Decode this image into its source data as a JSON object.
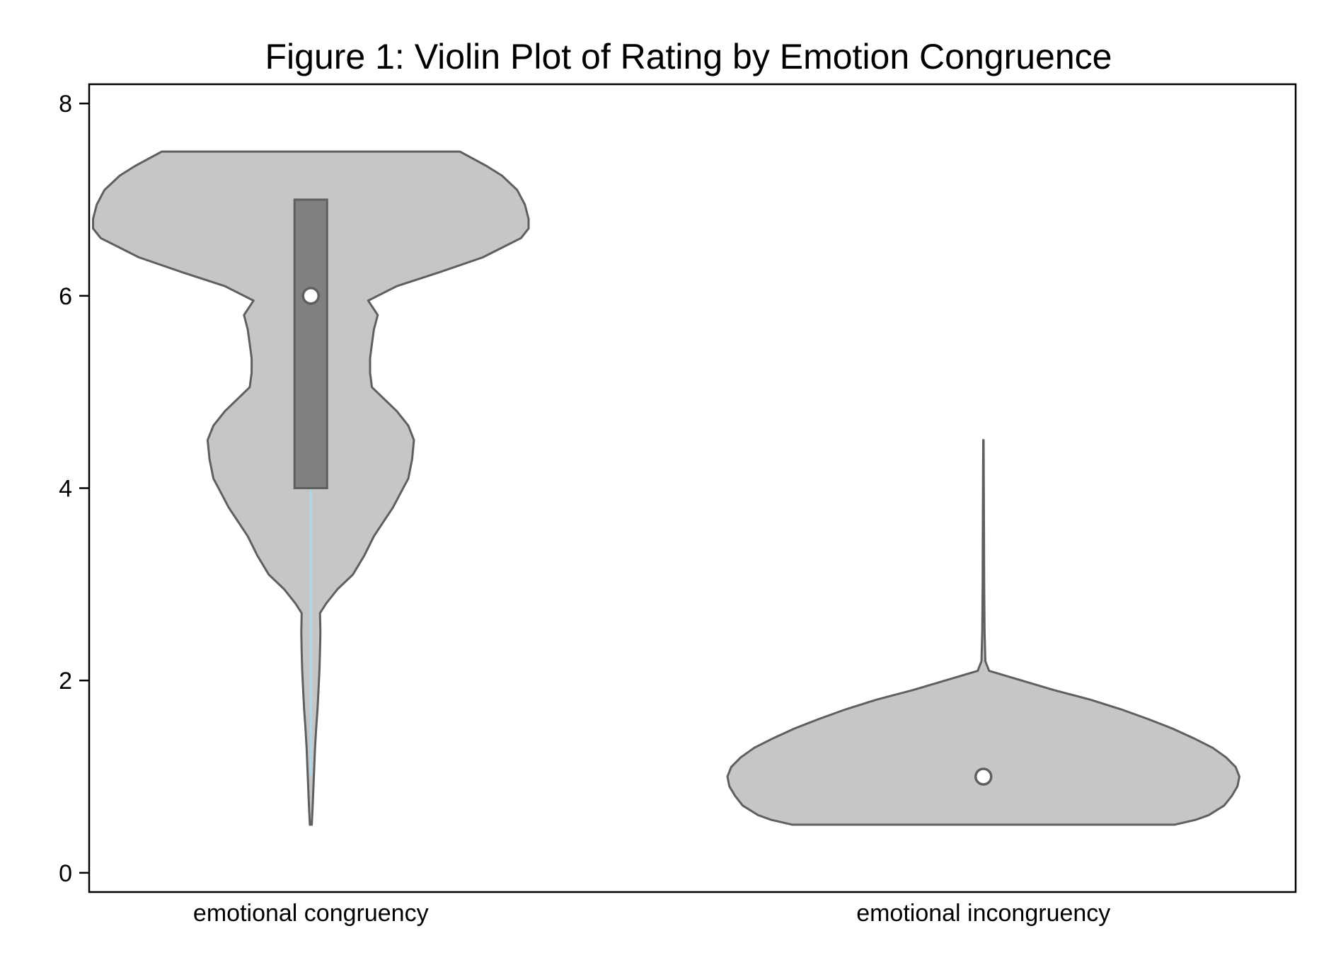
{
  "chart_data": {
    "type": "violin",
    "title": "Figure 1: Violin Plot of Rating by Emotion Congruence",
    "xlabel": "",
    "ylabel": "",
    "ylim": [
      -0.2,
      8.2
    ],
    "y_ticks": [
      0,
      2,
      4,
      6,
      8
    ],
    "y_tick_labels": [
      "0",
      "2",
      "4",
      "6",
      "8"
    ],
    "grid": false,
    "legend": "none",
    "colors": {
      "violin_fill": "#c6c6c6",
      "outline": "#5f5f5f",
      "box_fill": "#808080",
      "whisker": "#add8e6",
      "median_dot": "#ffffff"
    },
    "categories": [
      "emotional congruency",
      "emotional incongruency"
    ],
    "groups": [
      {
        "category": "emotional congruency",
        "median": 6,
        "q1": 4,
        "q3": 7,
        "whisker_low": 1,
        "whisker_high": 7,
        "density_y": [
          0.5,
          0.7,
          0.9,
          1.1,
          1.3,
          1.5,
          1.7,
          1.9,
          2.1,
          2.3,
          2.5,
          2.7,
          2.8,
          2.95,
          3.1,
          3.3,
          3.5,
          3.65,
          3.8,
          3.95,
          4.1,
          4.3,
          4.5,
          4.65,
          4.8,
          5.05,
          5.2,
          5.35,
          5.5,
          5.65,
          5.8,
          5.95,
          6.1,
          6.25,
          6.4,
          6.5,
          6.6,
          6.7,
          6.8,
          6.95,
          7.1,
          7.25,
          7.35,
          7.5
        ],
        "density_halfwidth": [
          0.005,
          0.01,
          0.014,
          0.018,
          0.022,
          0.028,
          0.035,
          0.04,
          0.045,
          0.048,
          0.05,
          0.048,
          0.08,
          0.14,
          0.22,
          0.28,
          0.33,
          0.38,
          0.43,
          0.47,
          0.51,
          0.53,
          0.54,
          0.51,
          0.45,
          0.32,
          0.31,
          0.31,
          0.32,
          0.33,
          0.35,
          0.3,
          0.45,
          0.68,
          0.9,
          1.0,
          1.1,
          1.14,
          1.14,
          1.12,
          1.08,
          1.0,
          0.92,
          0.78
        ]
      },
      {
        "category": "emotional incongruency",
        "median": 1,
        "q1": 1,
        "q3": 1,
        "whisker_low": 1,
        "whisker_high": 1,
        "density_y": [
          0.5,
          0.55,
          0.6,
          0.7,
          0.8,
          0.9,
          1.0,
          1.1,
          1.2,
          1.3,
          1.4,
          1.5,
          1.6,
          1.7,
          1.8,
          1.9,
          2.0,
          2.1,
          2.2,
          2.5,
          3.0,
          3.5,
          4.0,
          4.5
        ],
        "density_halfwidth": [
          1.0,
          1.11,
          1.18,
          1.26,
          1.3,
          1.33,
          1.34,
          1.32,
          1.27,
          1.2,
          1.1,
          0.99,
          0.86,
          0.72,
          0.56,
          0.37,
          0.2,
          0.03,
          0.01,
          0.006,
          0.004,
          0.003,
          0.002,
          0.001
        ]
      }
    ]
  }
}
